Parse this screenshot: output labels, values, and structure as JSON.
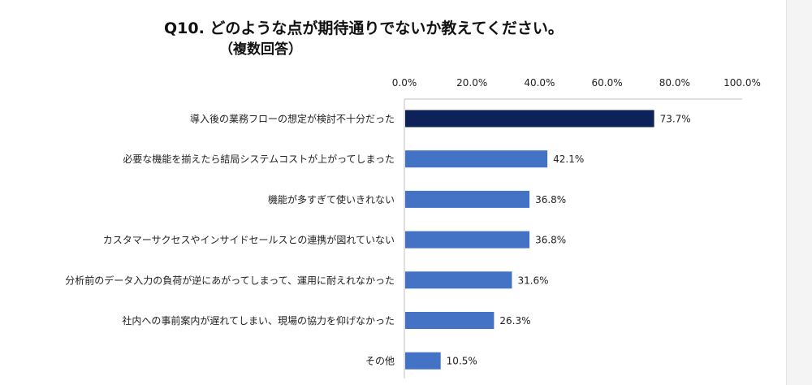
{
  "header": {
    "title": "Q10. どのような点が期待通りでないか教えてください。",
    "subtitle": "（複数回答）"
  },
  "colors": {
    "highlight_bar": "#0c2259",
    "bar": "#4472c4",
    "axis": "#bfbfbf",
    "text": "#222222"
  },
  "chart_data": {
    "type": "bar",
    "orientation": "horizontal",
    "title": "Q10. どのような点が期待通りでないか教えてください。",
    "subtitle": "（複数回答）",
    "categories": [
      "導入後の業務フローの想定が検討不十分だった",
      "必要な機能を揃えたら結局システムコストが上がってしまった",
      "機能が多すぎて使いきれない",
      "カスタマーサクセスやインサイドセールスとの連携が図れていない",
      "分析前のデータ入力の負荷が逆にあがってしまって、運用に耐えれなかった",
      "社内への事前案内が遅れてしまい、現場の協力を仰げなかった",
      "その他"
    ],
    "values": [
      73.7,
      42.1,
      36.8,
      36.8,
      31.6,
      26.3,
      10.5
    ],
    "data_labels": [
      "73.7%",
      "42.1%",
      "36.8%",
      "36.8%",
      "31.6%",
      "26.3%",
      "10.5%"
    ],
    "xlim": [
      0,
      100
    ],
    "xticks": [
      0,
      20,
      40,
      60,
      80,
      100
    ],
    "xtick_labels": [
      "0.0%",
      "20.0%",
      "40.0%",
      "60.0%",
      "80.0%",
      "100.0%"
    ],
    "axis_position": "top",
    "grid": false,
    "legend": "none"
  }
}
